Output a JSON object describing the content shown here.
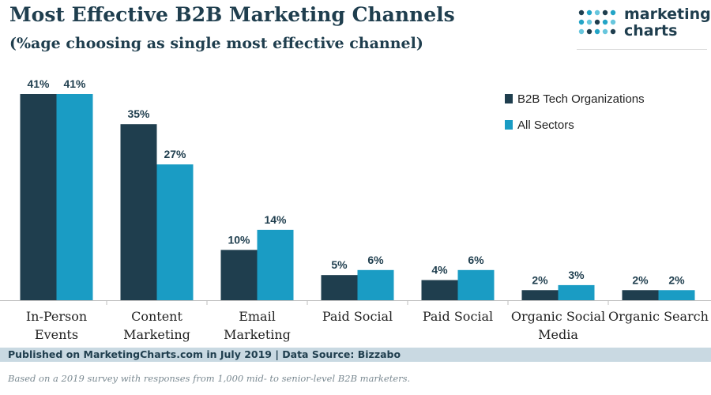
{
  "header": {
    "title": "Most Effective B2B Marketing Channels",
    "subtitle": "(%age choosing as single most effective channel)"
  },
  "logo": {
    "line1": "marketing",
    "line2": "charts",
    "dot_colors": [
      "#1f3e4e",
      "#23a4c6",
      "#67c6dd"
    ]
  },
  "colors": {
    "series1": "#1f3e4e",
    "series2": "#1a9cc4",
    "label": "#1f3e4e",
    "axis": "#bfbfbf"
  },
  "chart_data": {
    "type": "bar",
    "categories": [
      [
        "In-Person",
        "Events"
      ],
      [
        "Content",
        "Marketing"
      ],
      [
        "Email",
        "Marketing"
      ],
      [
        "Paid Social"
      ],
      [
        "Paid Social"
      ],
      [
        "Organic Social",
        "Media"
      ],
      [
        "Organic Search"
      ]
    ],
    "series": [
      {
        "name": "B2B Tech Organizations",
        "values": [
          41,
          35,
          10,
          5,
          4,
          2,
          2
        ],
        "labels": [
          "41%",
          "35%",
          "10%",
          "5%",
          "4%",
          "2%",
          "2%"
        ]
      },
      {
        "name": "All Sectors",
        "values": [
          41,
          27,
          14,
          6,
          6,
          3,
          2
        ],
        "labels": [
          "41%",
          "27%",
          "14%",
          "6%",
          "6%",
          "3%",
          "2%"
        ]
      }
    ],
    "ylim": [
      0,
      41
    ],
    "legend_position": "top-right",
    "grid": false
  },
  "footer": {
    "source": "Published on MarketingCharts.com in July 2019 | Data Source: Bizzabo",
    "note": "Based on a 2019 survey with responses from 1,000 mid- to senior-level B2B marketers."
  }
}
